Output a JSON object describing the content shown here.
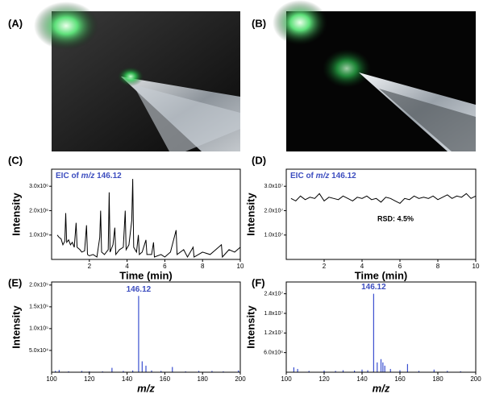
{
  "panel_labels": [
    "(A)",
    "(B)",
    "(C)",
    "(D)",
    "(E)",
    "(F)"
  ],
  "chart_data": [
    {
      "type": "line",
      "annotation": [
        "EIC of ",
        "m/z",
        " 146.12"
      ],
      "xlabel": "Time (min)",
      "ylabel": "Intensity",
      "xlabel_italic": false,
      "color": "#000000",
      "x": [
        0.3,
        0.4,
        0.5,
        0.6,
        0.7,
        0.75,
        0.8,
        0.9,
        1.0,
        1.1,
        1.2,
        1.3,
        1.35,
        1.5,
        1.6,
        1.75,
        1.85,
        1.9,
        2.0,
        2.2,
        2.4,
        2.55,
        2.6,
        2.65,
        2.8,
        3.0,
        3.05,
        3.1,
        3.25,
        3.35,
        3.4,
        3.6,
        3.8,
        3.9,
        3.95,
        4.1,
        4.25,
        4.3,
        4.35,
        4.5,
        4.6,
        4.65,
        4.8,
        5.0,
        5.05,
        5.3,
        5.4,
        5.45,
        5.8,
        6.0,
        6.3,
        6.6,
        6.65,
        7.0,
        7.2,
        7.5,
        7.55,
        8.0,
        8.4,
        8.7,
        9.0,
        9.05,
        9.4,
        9.7,
        10.0
      ],
      "values": [
        1000000.0,
        900000.0,
        850000.0,
        600000.0,
        750000.0,
        1900000.0,
        700000.0,
        800000.0,
        600000.0,
        700000.0,
        500000.0,
        1500000.0,
        500000.0,
        400000.0,
        300000.0,
        350000.0,
        1400000.0,
        200000.0,
        150000.0,
        200000.0,
        100000.0,
        900000.0,
        2000000.0,
        300000.0,
        200000.0,
        400000.0,
        2750000.0,
        300000.0,
        600000.0,
        1300000.0,
        200000.0,
        400000.0,
        500000.0,
        2000000.0,
        400000.0,
        600000.0,
        1600000.0,
        3300000.0,
        500000.0,
        300000.0,
        1000000.0,
        200000.0,
        300000.0,
        800000.0,
        200000.0,
        200000.0,
        700000.0,
        100000.0,
        200000.0,
        100000.0,
        300000.0,
        1200000.0,
        200000.0,
        400000.0,
        100000.0,
        500000.0,
        100000.0,
        300000.0,
        200000.0,
        400000.0,
        600000.0,
        100000.0,
        400000.0,
        300000.0,
        500000.0
      ],
      "xlim": [
        0,
        10
      ],
      "xticks": [
        2,
        4,
        6,
        8,
        10
      ],
      "ylim": [
        0,
        3700000.0
      ],
      "yticks": [
        {
          "value": 1000000,
          "label": "1.0x10⁶"
        },
        {
          "value": 2000000,
          "label": "2.0x10⁶"
        },
        {
          "value": 3000000,
          "label": "3.0x10⁶"
        }
      ]
    },
    {
      "type": "line",
      "annotation": [
        "EIC of ",
        "m/z",
        " 146.12"
      ],
      "note": "RSD: 4.5%",
      "xlabel": "Time (min)",
      "ylabel": "Intensity",
      "xlabel_italic": false,
      "color": "#000000",
      "x": [
        0.25,
        0.5,
        0.75,
        1.0,
        1.25,
        1.5,
        1.75,
        2.0,
        2.25,
        2.5,
        2.75,
        3.0,
        3.25,
        3.5,
        3.75,
        4.0,
        4.25,
        4.5,
        4.75,
        5.0,
        5.25,
        5.5,
        5.75,
        6.0,
        6.25,
        6.5,
        6.75,
        7.0,
        7.25,
        7.5,
        7.75,
        8.0,
        8.25,
        8.5,
        8.75,
        9.0,
        9.25,
        9.5,
        9.75,
        10.0
      ],
      "values": [
        25000000.0,
        24000000.0,
        26000000.0,
        24500000.0,
        25500000.0,
        25000000.0,
        27000000.0,
        24000000.0,
        25500000.0,
        25000000.0,
        24500000.0,
        26000000.0,
        25000000.0,
        24000000.0,
        25500000.0,
        25000000.0,
        26000000.0,
        24500000.0,
        25000000.0,
        23500000.0,
        25500000.0,
        25000000.0,
        24000000.0,
        23000000.0,
        25000000.0,
        24500000.0,
        26000000.0,
        25000000.0,
        25500000.0,
        25000000.0,
        26000000.0,
        24500000.0,
        25500000.0,
        26500000.0,
        25000000.0,
        26000000.0,
        25500000.0,
        27000000.0,
        25000000.0,
        26000000.0
      ],
      "xlim": [
        0,
        10
      ],
      "xticks": [
        2,
        4,
        6,
        8,
        10
      ],
      "ylim": [
        0,
        37000000.0
      ],
      "yticks": [
        {
          "value": 10000000,
          "label": "1.0x10⁷"
        },
        {
          "value": 20000000,
          "label": "2.0x10⁷"
        },
        {
          "value": 30000000,
          "label": "3.0x10⁷"
        }
      ]
    },
    {
      "type": "stem",
      "peak_label": {
        "text": "146.12",
        "x": 146.12
      },
      "xlabel": "m/z",
      "ylabel": "Intensity",
      "xlabel_italic": true,
      "color": "#3a4fd0",
      "x": [
        102,
        104,
        109,
        116,
        120,
        127,
        132,
        138,
        143,
        146.12,
        148,
        150,
        153,
        158,
        164,
        171,
        178,
        185,
        191,
        199
      ],
      "values": [
        3000.0,
        5000.0,
        2000.0,
        3000.0,
        2000.0,
        2000.0,
        10000.0,
        3000.0,
        4000.0,
        175000.0,
        25000.0,
        15000.0,
        4000.0,
        3000.0,
        12000.0,
        2000.0,
        3000.0,
        3000.0,
        2000.0,
        4000.0
      ],
      "xlim": [
        100,
        200
      ],
      "xticks": [
        100,
        120,
        140,
        160,
        180,
        200
      ],
      "ylim": [
        0,
        207000.0
      ],
      "yticks": [
        {
          "value": 50000,
          "label": "5.0x10⁴"
        },
        {
          "value": 100000,
          "label": "1.0x10⁵"
        },
        {
          "value": 150000,
          "label": "1.5x10⁵"
        },
        {
          "value": 200000,
          "label": "2.0x10⁵"
        }
      ]
    },
    {
      "type": "stem",
      "peak_label": {
        "text": "146.12",
        "x": 146.12
      },
      "xlabel": "m/z",
      "ylabel": "Intensity",
      "xlabel_italic": true,
      "color": "#3a4fd0",
      "x": [
        104,
        106,
        112,
        120,
        126,
        130,
        136,
        140,
        143,
        146.12,
        148,
        150,
        151,
        152,
        155,
        160,
        164,
        170,
        178,
        185,
        192
      ],
      "values": [
        1500000.0,
        1000000.0,
        400000.0,
        500000.0,
        400000.0,
        600000.0,
        500000.0,
        800000.0,
        600000.0,
        24000000.0,
        3000000.0,
        4000000.0,
        3000000.0,
        2000000.0,
        1000000.0,
        600000.0,
        2500000.0,
        400000.0,
        800000.0,
        400000.0,
        300000.0
      ],
      "xlim": [
        100,
        200
      ],
      "xticks": [
        100,
        120,
        140,
        160,
        180,
        200
      ],
      "ylim": [
        0,
        27600000.0
      ],
      "yticks": [
        {
          "value": 6000000,
          "label": "6.0x10⁶"
        },
        {
          "value": 12000000,
          "label": "1.2x10⁷"
        },
        {
          "value": 18000000,
          "label": "1.8x10⁷"
        },
        {
          "value": 24000000,
          "label": "2.4x10⁷"
        }
      ]
    }
  ]
}
